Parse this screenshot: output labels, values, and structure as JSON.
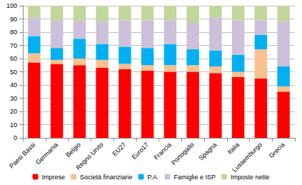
{
  "chart_data": {
    "type": "bar",
    "stacked": true,
    "grid": true,
    "legend": "bottom",
    "categories": [
      "Paesi Bassi",
      "Germania",
      "Belgio",
      "Regno Unito",
      "EU27",
      "Euro17",
      "Francia",
      "Portogallo",
      "Spagna",
      "Italia",
      "Lussemburgo",
      "Grecia"
    ],
    "series": [
      {
        "name": "Imprese",
        "color": "#ff0000",
        "values": [
          57,
          56,
          55,
          53,
          52,
          51,
          50,
          50,
          49,
          46,
          45,
          35
        ]
      },
      {
        "name": "Società finanziarie",
        "color": "#fac090",
        "values": [
          7,
          3,
          5,
          6,
          4,
          4,
          5,
          5,
          5,
          4,
          22,
          4
        ]
      },
      {
        "name": "P.A.",
        "color": "#00b0f0",
        "values": [
          13,
          9,
          15,
          12,
          13,
          13,
          16,
          12,
          12,
          13,
          11,
          15
        ]
      },
      {
        "name": "Famiglie e ISP",
        "color": "#ccc0da",
        "values": [
          14,
          21,
          14,
          17,
          20,
          21,
          18,
          20,
          25,
          26,
          11,
          34
        ]
      },
      {
        "name": "Imposte nette",
        "color": "#c3d69b",
        "values": [
          9,
          11,
          11,
          12,
          11,
          11,
          11,
          13,
          9,
          11,
          11,
          12
        ]
      }
    ],
    "ylim": [
      0,
      100
    ],
    "yticks": [
      0,
      10,
      20,
      30,
      40,
      50,
      60,
      70,
      80,
      90,
      100
    ]
  }
}
